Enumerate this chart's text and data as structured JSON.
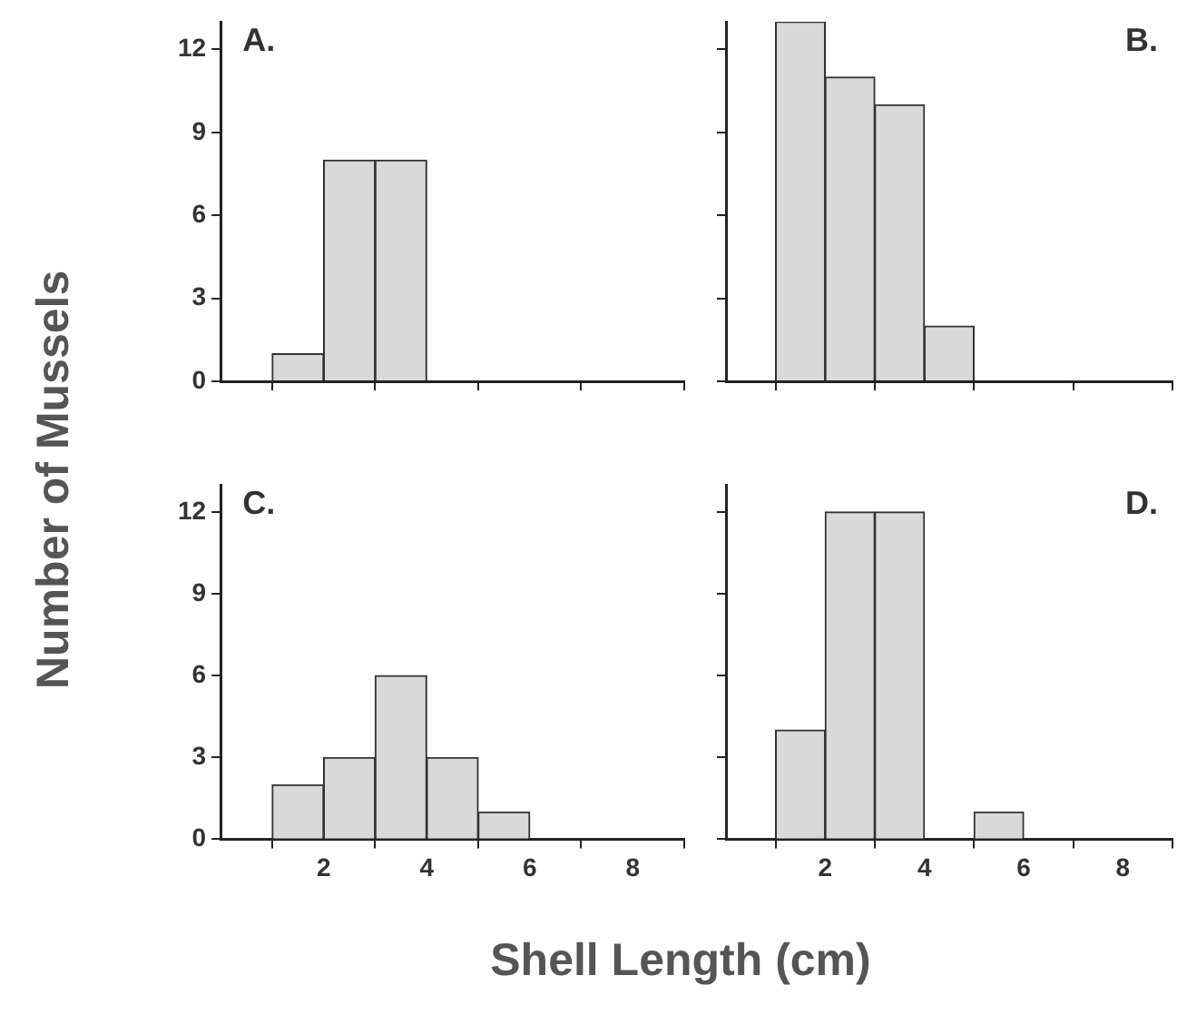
{
  "chart_data": [
    {
      "type": "histogram",
      "title": "A.",
      "ylabel": "Number of Mussels",
      "bins": [
        1,
        2,
        3,
        4
      ],
      "values": [
        1,
        8,
        8
      ],
      "color": "#d9d9d9",
      "xlim": [
        0,
        9
      ],
      "xticks": [
        {
          "value": 2,
          "label": null
        },
        {
          "value": 4,
          "label": null
        },
        {
          "value": 6,
          "label": null
        },
        {
          "value": 8,
          "label": null
        }
      ],
      "ylim": [
        0,
        13
      ],
      "yticks": [
        0,
        3,
        6,
        9,
        12
      ],
      "grid": false,
      "legend": false,
      "tick_labels": "y"
    },
    {
      "type": "histogram",
      "title": "B.",
      "bins": [
        1,
        2,
        3,
        4,
        5
      ],
      "values": [
        13,
        11,
        10,
        2
      ],
      "color": "#d9d9d9",
      "xlim": [
        0,
        9
      ],
      "xticks": [
        {
          "value": 2,
          "label": null
        },
        {
          "value": 4,
          "label": null
        },
        {
          "value": 6,
          "label": null
        },
        {
          "value": 8,
          "label": null
        }
      ],
      "ylim": [
        0,
        13
      ],
      "yticks": [
        {
          "value": 0,
          "label": null
        },
        {
          "value": 3,
          "label": null
        },
        {
          "value": 6,
          "label": null
        },
        {
          "value": 9,
          "label": null
        },
        {
          "value": 12,
          "label": null
        }
      ],
      "grid": false,
      "legend": false,
      "tick_labels": false
    },
    {
      "type": "histogram",
      "title": "C.",
      "xlabel": "Shell Length (cm)",
      "bins": [
        1,
        2,
        3,
        4,
        5,
        6
      ],
      "values": [
        2,
        3,
        6,
        3,
        1
      ],
      "color": "#d9d9d9",
      "xlim": [
        0,
        9
      ],
      "xticks": [
        2,
        4,
        6,
        8
      ],
      "ylim": [
        0,
        13
      ],
      "yticks": [
        0,
        3,
        6,
        9,
        12
      ],
      "grid": false,
      "legend": false
    },
    {
      "type": "histogram",
      "title": "D.",
      "bins": [
        1,
        2,
        3,
        4,
        5,
        6
      ],
      "values": [
        4,
        12,
        12,
        0,
        1
      ],
      "color": "#d9d9d9",
      "xlim": [
        0,
        9
      ],
      "xticks": [
        2,
        4,
        6,
        8
      ],
      "ylim": [
        0,
        13
      ],
      "yticks": [
        {
          "value": 0,
          "label": null
        },
        {
          "value": 3,
          "label": null
        },
        {
          "value": 6,
          "label": null
        },
        {
          "value": 9,
          "label": null
        },
        {
          "value": 12,
          "label": null
        }
      ],
      "grid": false,
      "legend": false,
      "tick_labels": "x"
    }
  ]
}
